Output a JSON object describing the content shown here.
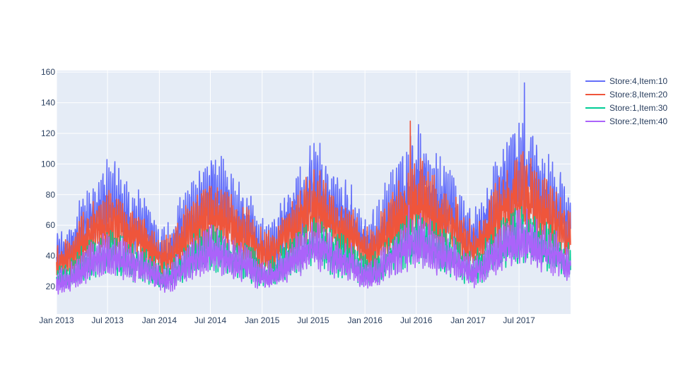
{
  "chart_data": {
    "type": "line",
    "title": "",
    "xlabel": "",
    "ylabel": "",
    "x_range": [
      "2013-01-01",
      "2017-12-31"
    ],
    "ylim": [
      2,
      161
    ],
    "y_ticks": [
      20,
      40,
      60,
      80,
      100,
      120,
      140,
      160
    ],
    "x_ticks": [
      {
        "date": "2013-01-01",
        "label": "Jan 2013"
      },
      {
        "date": "2013-07-01",
        "label": "Jul 2013"
      },
      {
        "date": "2014-01-01",
        "label": "Jan 2014"
      },
      {
        "date": "2014-07-01",
        "label": "Jul 2014"
      },
      {
        "date": "2015-01-01",
        "label": "Jan 2015"
      },
      {
        "date": "2015-07-01",
        "label": "Jul 2015"
      },
      {
        "date": "2016-01-01",
        "label": "Jan 2016"
      },
      {
        "date": "2016-07-01",
        "label": "Jul 2016"
      },
      {
        "date": "2017-01-01",
        "label": "Jan 2017"
      },
      {
        "date": "2017-07-01",
        "label": "Jul 2017"
      }
    ],
    "grid": true,
    "legend_position": "right",
    "background": "#e5ecf6",
    "series": [
      {
        "name": "Store:4,Item:10",
        "color": "#636efa",
        "monthly_mean": [
          [
            "2013-01-15",
            43
          ],
          [
            "2013-02-15",
            46
          ],
          [
            "2013-03-15",
            56
          ],
          [
            "2013-04-15",
            63
          ],
          [
            "2013-05-15",
            70
          ],
          [
            "2013-06-15",
            76
          ],
          [
            "2013-07-15",
            80
          ],
          [
            "2013-08-15",
            74
          ],
          [
            "2013-09-15",
            66
          ],
          [
            "2013-10-15",
            63
          ],
          [
            "2013-11-15",
            60
          ],
          [
            "2013-12-15",
            50
          ],
          [
            "2014-01-15",
            46
          ],
          [
            "2014-02-15",
            49
          ],
          [
            "2014-03-15",
            60
          ],
          [
            "2014-04-15",
            67
          ],
          [
            "2014-05-15",
            74
          ],
          [
            "2014-06-15",
            80
          ],
          [
            "2014-07-15",
            84
          ],
          [
            "2014-08-15",
            78
          ],
          [
            "2014-09-15",
            70
          ],
          [
            "2014-10-15",
            67
          ],
          [
            "2014-11-15",
            63
          ],
          [
            "2014-12-15",
            53
          ],
          [
            "2015-01-15",
            48
          ],
          [
            "2015-02-15",
            52
          ],
          [
            "2015-03-15",
            63
          ],
          [
            "2015-04-15",
            70
          ],
          [
            "2015-05-15",
            78
          ],
          [
            "2015-06-15",
            84
          ],
          [
            "2015-07-15",
            88
          ],
          [
            "2015-08-15",
            82
          ],
          [
            "2015-09-15",
            74
          ],
          [
            "2015-10-15",
            70
          ],
          [
            "2015-11-15",
            66
          ],
          [
            "2015-12-15",
            55
          ],
          [
            "2016-01-15",
            52
          ],
          [
            "2016-02-15",
            56
          ],
          [
            "2016-03-15",
            68
          ],
          [
            "2016-04-15",
            76
          ],
          [
            "2016-05-15",
            84
          ],
          [
            "2016-06-15",
            91
          ],
          [
            "2016-07-15",
            96
          ],
          [
            "2016-08-15",
            89
          ],
          [
            "2016-09-15",
            80
          ],
          [
            "2016-10-15",
            76
          ],
          [
            "2016-11-15",
            71
          ],
          [
            "2016-12-15",
            60
          ],
          [
            "2017-01-15",
            55
          ],
          [
            "2017-02-15",
            60
          ],
          [
            "2017-03-15",
            72
          ],
          [
            "2017-04-15",
            80
          ],
          [
            "2017-05-15",
            89
          ],
          [
            "2017-06-15",
            96
          ],
          [
            "2017-07-15",
            101
          ],
          [
            "2017-08-15",
            94
          ],
          [
            "2017-09-15",
            85
          ],
          [
            "2017-10-15",
            80
          ],
          [
            "2017-11-15",
            76
          ],
          [
            "2017-12-15",
            64
          ]
        ],
        "peak": [
          "2017-07-20",
          153
        ]
      },
      {
        "name": "Store:8,Item:20",
        "color": "#ef553b",
        "monthly_mean": [
          [
            "2013-01-15",
            37
          ],
          [
            "2013-02-15",
            40
          ],
          [
            "2013-03-15",
            48
          ],
          [
            "2013-04-15",
            54
          ],
          [
            "2013-05-15",
            59
          ],
          [
            "2013-06-15",
            63
          ],
          [
            "2013-07-15",
            66
          ],
          [
            "2013-08-15",
            62
          ],
          [
            "2013-09-15",
            56
          ],
          [
            "2013-10-15",
            54
          ],
          [
            "2013-11-15",
            51
          ],
          [
            "2013-12-15",
            43
          ],
          [
            "2014-01-15",
            40
          ],
          [
            "2014-02-15",
            42
          ],
          [
            "2014-03-15",
            51
          ],
          [
            "2014-04-15",
            57
          ],
          [
            "2014-05-15",
            63
          ],
          [
            "2014-06-15",
            67
          ],
          [
            "2014-07-15",
            70
          ],
          [
            "2014-08-15",
            66
          ],
          [
            "2014-09-15",
            60
          ],
          [
            "2014-10-15",
            57
          ],
          [
            "2014-11-15",
            54
          ],
          [
            "2014-12-15",
            46
          ],
          [
            "2015-01-15",
            42
          ],
          [
            "2015-02-15",
            45
          ],
          [
            "2015-03-15",
            54
          ],
          [
            "2015-04-15",
            60
          ],
          [
            "2015-05-15",
            66
          ],
          [
            "2015-06-15",
            71
          ],
          [
            "2015-07-15",
            74
          ],
          [
            "2015-08-15",
            69
          ],
          [
            "2015-09-15",
            63
          ],
          [
            "2015-10-15",
            60
          ],
          [
            "2015-11-15",
            57
          ],
          [
            "2015-12-15",
            48
          ],
          [
            "2016-01-15",
            45
          ],
          [
            "2016-02-15",
            48
          ],
          [
            "2016-03-15",
            58
          ],
          [
            "2016-04-15",
            65
          ],
          [
            "2016-05-15",
            71
          ],
          [
            "2016-06-15",
            76
          ],
          [
            "2016-07-15",
            80
          ],
          [
            "2016-08-15",
            75
          ],
          [
            "2016-09-15",
            68
          ],
          [
            "2016-10-15",
            65
          ],
          [
            "2016-11-15",
            61
          ],
          [
            "2016-12-15",
            52
          ],
          [
            "2017-01-15",
            47
          ],
          [
            "2017-02-15",
            51
          ],
          [
            "2017-03-15",
            61
          ],
          [
            "2017-04-15",
            68
          ],
          [
            "2017-05-15",
            75
          ],
          [
            "2017-06-15",
            80
          ],
          [
            "2017-07-15",
            84
          ],
          [
            "2017-08-15",
            79
          ],
          [
            "2017-09-15",
            72
          ],
          [
            "2017-10-15",
            68
          ],
          [
            "2017-11-15",
            64
          ],
          [
            "2017-12-15",
            54
          ]
        ],
        "peak": [
          "2016-06-10",
          128
        ]
      },
      {
        "name": "Store:1,Item:30",
        "color": "#00cc96",
        "monthly_mean": [
          [
            "2013-01-15",
            26
          ],
          [
            "2013-02-15",
            28
          ],
          [
            "2013-03-15",
            33
          ],
          [
            "2013-04-15",
            37
          ],
          [
            "2013-05-15",
            40
          ],
          [
            "2013-06-15",
            43
          ],
          [
            "2013-07-15",
            45
          ],
          [
            "2013-08-15",
            42
          ],
          [
            "2013-09-15",
            38
          ],
          [
            "2013-10-15",
            37
          ],
          [
            "2013-11-15",
            35
          ],
          [
            "2013-12-15",
            30
          ],
          [
            "2014-01-15",
            27
          ],
          [
            "2014-02-15",
            29
          ],
          [
            "2014-03-15",
            35
          ],
          [
            "2014-04-15",
            39
          ],
          [
            "2014-05-15",
            43
          ],
          [
            "2014-06-15",
            46
          ],
          [
            "2014-07-15",
            48
          ],
          [
            "2014-08-15",
            45
          ],
          [
            "2014-09-15",
            41
          ],
          [
            "2014-10-15",
            39
          ],
          [
            "2014-11-15",
            37
          ],
          [
            "2014-12-15",
            32
          ],
          [
            "2015-01-15",
            29
          ],
          [
            "2015-02-15",
            31
          ],
          [
            "2015-03-15",
            37
          ],
          [
            "2015-04-15",
            41
          ],
          [
            "2015-05-15",
            45
          ],
          [
            "2015-06-15",
            48
          ],
          [
            "2015-07-15",
            50
          ],
          [
            "2015-08-15",
            47
          ],
          [
            "2015-09-15",
            43
          ],
          [
            "2015-10-15",
            41
          ],
          [
            "2015-11-15",
            39
          ],
          [
            "2015-12-15",
            33
          ],
          [
            "2016-01-15",
            31
          ],
          [
            "2016-02-15",
            33
          ],
          [
            "2016-03-15",
            40
          ],
          [
            "2016-04-15",
            44
          ],
          [
            "2016-05-15",
            48
          ],
          [
            "2016-06-15",
            52
          ],
          [
            "2016-07-15",
            54
          ],
          [
            "2016-08-15",
            51
          ],
          [
            "2016-09-15",
            46
          ],
          [
            "2016-10-15",
            44
          ],
          [
            "2016-11-15",
            42
          ],
          [
            "2016-12-15",
            36
          ],
          [
            "2017-01-15",
            32
          ],
          [
            "2017-02-15",
            35
          ],
          [
            "2017-03-15",
            42
          ],
          [
            "2017-04-15",
            46
          ],
          [
            "2017-05-15",
            51
          ],
          [
            "2017-06-15",
            54
          ],
          [
            "2017-07-15",
            57
          ],
          [
            "2017-08-15",
            53
          ],
          [
            "2017-09-15",
            49
          ],
          [
            "2017-10-15",
            46
          ],
          [
            "2017-11-15",
            44
          ],
          [
            "2017-12-15",
            37
          ]
        ],
        "peak": [
          "2017-07-10",
          72
        ]
      },
      {
        "name": "Store:2,Item:40",
        "color": "#ab63fa",
        "monthly_mean": [
          [
            "2013-01-15",
            24
          ],
          [
            "2013-02-15",
            26
          ],
          [
            "2013-03-15",
            31
          ],
          [
            "2013-04-15",
            35
          ],
          [
            "2013-05-15",
            38
          ],
          [
            "2013-06-15",
            41
          ],
          [
            "2013-07-15",
            43
          ],
          [
            "2013-08-15",
            40
          ],
          [
            "2013-09-15",
            36
          ],
          [
            "2013-10-15",
            35
          ],
          [
            "2013-11-15",
            33
          ],
          [
            "2013-12-15",
            28
          ],
          [
            "2014-01-15",
            25
          ],
          [
            "2014-02-15",
            27
          ],
          [
            "2014-03-15",
            33
          ],
          [
            "2014-04-15",
            37
          ],
          [
            "2014-05-15",
            41
          ],
          [
            "2014-06-15",
            44
          ],
          [
            "2014-07-15",
            46
          ],
          [
            "2014-08-15",
            43
          ],
          [
            "2014-09-15",
            39
          ],
          [
            "2014-10-15",
            37
          ],
          [
            "2014-11-15",
            35
          ],
          [
            "2014-12-15",
            30
          ],
          [
            "2015-01-15",
            27
          ],
          [
            "2015-02-15",
            29
          ],
          [
            "2015-03-15",
            35
          ],
          [
            "2015-04-15",
            39
          ],
          [
            "2015-05-15",
            43
          ],
          [
            "2015-06-15",
            46
          ],
          [
            "2015-07-15",
            48
          ],
          [
            "2015-08-15",
            45
          ],
          [
            "2015-09-15",
            41
          ],
          [
            "2015-10-15",
            39
          ],
          [
            "2015-11-15",
            37
          ],
          [
            "2015-12-15",
            31
          ],
          [
            "2016-01-15",
            29
          ],
          [
            "2016-02-15",
            31
          ],
          [
            "2016-03-15",
            38
          ],
          [
            "2016-04-15",
            42
          ],
          [
            "2016-05-15",
            46
          ],
          [
            "2016-06-15",
            50
          ],
          [
            "2016-07-15",
            52
          ],
          [
            "2016-08-15",
            49
          ],
          [
            "2016-09-15",
            44
          ],
          [
            "2016-10-15",
            42
          ],
          [
            "2016-11-15",
            40
          ],
          [
            "2016-12-15",
            34
          ],
          [
            "2017-01-15",
            30
          ],
          [
            "2017-02-15",
            33
          ],
          [
            "2017-03-15",
            40
          ],
          [
            "2017-04-15",
            44
          ],
          [
            "2017-05-15",
            49
          ],
          [
            "2017-06-15",
            52
          ],
          [
            "2017-07-15",
            55
          ],
          [
            "2017-08-15",
            51
          ],
          [
            "2017-09-15",
            47
          ],
          [
            "2017-10-15",
            44
          ],
          [
            "2017-11-15",
            42
          ],
          [
            "2017-12-15",
            35
          ]
        ],
        "peak": [
          "2016-06-05",
          73
        ]
      }
    ]
  }
}
